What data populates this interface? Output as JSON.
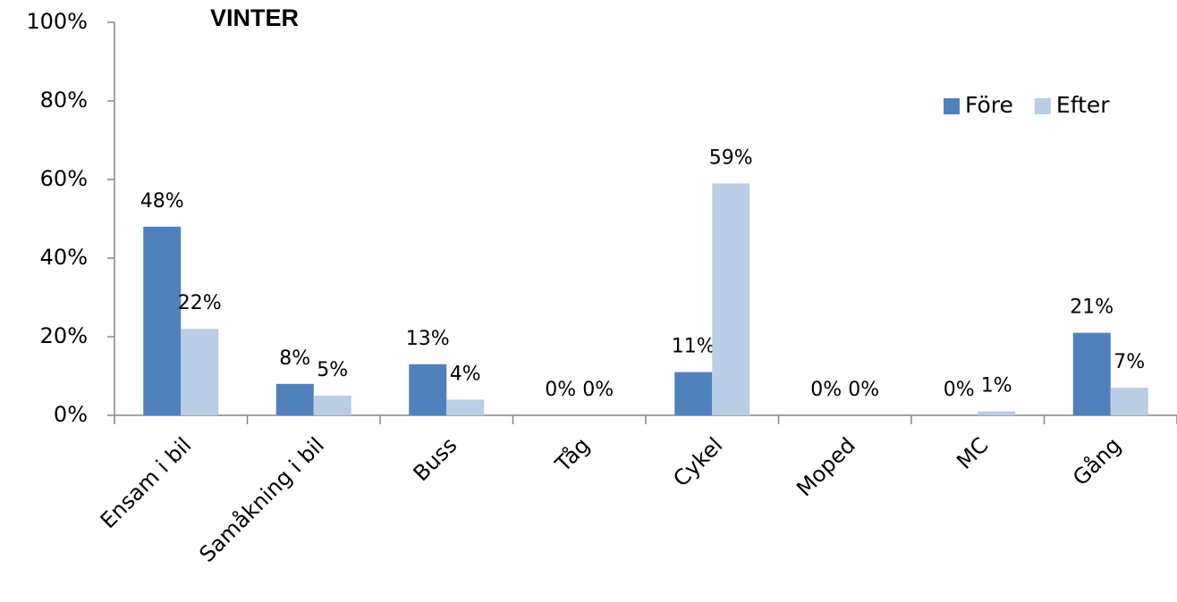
{
  "chart_data": {
    "type": "bar",
    "title": "VINTER",
    "categories": [
      "Ensam i bil",
      "Samåkning i bil",
      "Buss",
      "Tåg",
      "Cykel",
      "Moped",
      "MC",
      "Gång"
    ],
    "series": [
      {
        "name": "Före",
        "color": "#4f81bd",
        "values": [
          48,
          8,
          13,
          0,
          11,
          0,
          0,
          21
        ],
        "value_labels": [
          "48%",
          "8%",
          "13%",
          "0%",
          "11%",
          "0%",
          "0%",
          "21%"
        ]
      },
      {
        "name": "Efter",
        "color": "#b9cde5",
        "values": [
          22,
          5,
          4,
          0,
          59,
          0,
          1,
          7
        ],
        "value_labels": [
          "22%",
          "5%",
          "4%",
          "0%",
          "59%",
          "0%",
          "1%",
          "7%"
        ]
      }
    ],
    "ylim": [
      0,
      100
    ],
    "yticks": [
      {
        "value": 0,
        "label": "0%"
      },
      {
        "value": 20,
        "label": "20%"
      },
      {
        "value": 40,
        "label": "40%"
      },
      {
        "value": 60,
        "label": "60%"
      },
      {
        "value": 80,
        "label": "80%"
      },
      {
        "value": 100,
        "label": "100%"
      }
    ],
    "grid": false,
    "legend": "upper right"
  }
}
